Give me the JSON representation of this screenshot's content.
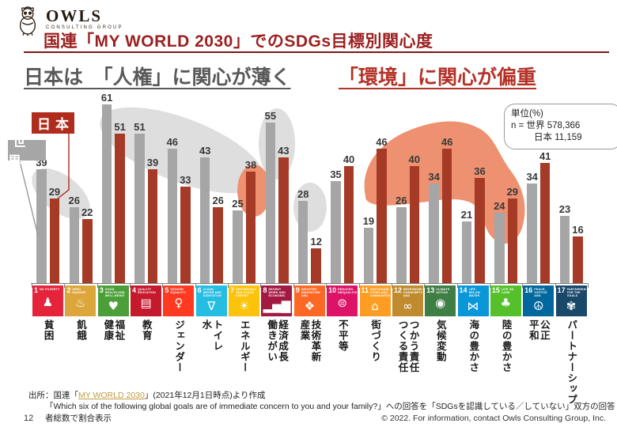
{
  "logo": {
    "brand": "OWLS",
    "tagline": "CONSULTING GROUP"
  },
  "title": "国連「MY WORLD 2030」でのSDGs目標別関心度",
  "subtitle": {
    "left": "日本は　「人権」に関心が薄く",
    "right": "「環境」に関心が偏重"
  },
  "legend": {
    "japan": "日本",
    "world": "世界"
  },
  "stats": {
    "unit": "単位(%)",
    "n_world": "n = 世界 578,366",
    "n_japan": "日本 11,159"
  },
  "chart_data": {
    "type": "bar",
    "unit": "%",
    "ylim": [
      0,
      65
    ],
    "grid": false,
    "legend_position": "top-left",
    "categories": [
      "貧困",
      "飢餓",
      "健康福祉",
      "教育",
      "ジェンダー",
      "水トイレ",
      "エネルギー",
      "働きがい経済成長",
      "産業技術革新",
      "不平等",
      "街づくり",
      "つくる責任つかう責任",
      "気候変動",
      "海の豊かさ",
      "陸の豊かさ",
      "平和公正",
      "パートナーシップ"
    ],
    "category_columns": [
      [
        "貧困"
      ],
      [
        "飢餓"
      ],
      [
        "健康",
        "福祉"
      ],
      [
        "教育"
      ],
      [
        "ジェンダー"
      ],
      [
        "水",
        "トイレ"
      ],
      [
        "エネルギー"
      ],
      [
        "働きがい",
        "経済成長"
      ],
      [
        "産業",
        "技術革新"
      ],
      [
        "不平等"
      ],
      [
        "街づくり"
      ],
      [
        "つくる責任",
        "つかう責任"
      ],
      [
        "気候変動"
      ],
      [
        "海の豊かさ"
      ],
      [
        "陸の豊かさ"
      ],
      [
        "平和",
        "公正"
      ],
      [
        "パートナーシップ"
      ]
    ],
    "series": [
      {
        "name": "世界",
        "color": "#a6a6a6",
        "values": [
          39,
          26,
          61,
          51,
          46,
          43,
          25,
          55,
          28,
          35,
          19,
          26,
          34,
          21,
          24,
          34,
          23
        ]
      },
      {
        "name": "日本",
        "color": "#a53a26",
        "values": [
          29,
          22,
          51,
          39,
          33,
          26,
          38,
          43,
          12,
          40,
          46,
          40,
          46,
          36,
          29,
          41,
          16
        ]
      }
    ],
    "highlight_colors": {
      "muted_ellipses": "#dedede",
      "emphasis_shapes": "#ed9170"
    }
  },
  "sdg_icons": [
    {
      "num": "1",
      "label": "NO POVERTY",
      "color": "#e5243b",
      "glyph": "♟"
    },
    {
      "num": "2",
      "label": "ZERO HUNGER",
      "color": "#dda63a",
      "glyph": "♨"
    },
    {
      "num": "3",
      "label": "GOOD HEALTH AND WELL-BEING",
      "color": "#4c9f38",
      "glyph": "♥"
    },
    {
      "num": "4",
      "label": "QUALITY EDUCATION",
      "color": "#c5192d",
      "glyph": "▤"
    },
    {
      "num": "5",
      "label": "GENDER EQUALITY",
      "color": "#ff3a21",
      "glyph": "♀"
    },
    {
      "num": "6",
      "label": "CLEAN WATER AND SANITATION",
      "color": "#26bde2",
      "glyph": "∇"
    },
    {
      "num": "7",
      "label": "AFFORDABLE AND CLEAN ENERGY",
      "color": "#fcc30b",
      "glyph": "☀"
    },
    {
      "num": "8",
      "label": "DECENT WORK AND ECONOMIC GROWTH",
      "color": "#a21942",
      "glyph": "▂▅▇"
    },
    {
      "num": "9",
      "label": "INDUSTRY, INNOVATION AND INFRASTRUCTURE",
      "color": "#fd6925",
      "glyph": "❖"
    },
    {
      "num": "10",
      "label": "REDUCED INEQUALITIES",
      "color": "#dd1367",
      "glyph": "⊜"
    },
    {
      "num": "11",
      "label": "SUSTAINABLE CITIES AND COMMUNITIES",
      "color": "#fd9d24",
      "glyph": "⌂"
    },
    {
      "num": "12",
      "label": "RESPONSIBLE CONSUMPTION AND PRODUCTION",
      "color": "#bf8b2e",
      "glyph": "∞"
    },
    {
      "num": "13",
      "label": "CLIMATE ACTION",
      "color": "#3f7e44",
      "glyph": "◉"
    },
    {
      "num": "14",
      "label": "LIFE BELOW WATER",
      "color": "#0a97d9",
      "glyph": "⋈"
    },
    {
      "num": "15",
      "label": "LIFE ON LAND",
      "color": "#56c02b",
      "glyph": "♣"
    },
    {
      "num": "16",
      "label": "PEACE, JUSTICE AND STRONG INSTITUTIONS",
      "color": "#00689d",
      "glyph": "☮"
    },
    {
      "num": "17",
      "label": "PARTNERSHIPS FOR THE GOALS",
      "color": "#19486a",
      "glyph": "✾"
    }
  ],
  "footer": {
    "source_prefix": "出所：国連「",
    "source_link": "MY WORLD 2030",
    "source_suffix": "」(2021年12月1日時点)より作成",
    "question_line": "「Which six of the following global goals are of immediate concern to you and your family?」への回答を「SDGsを認識している／していない」双方の回答者総数で割合表示",
    "page_number": "12",
    "copyright": "© 2022. For information, contact Owls Consulting Group, Inc."
  }
}
